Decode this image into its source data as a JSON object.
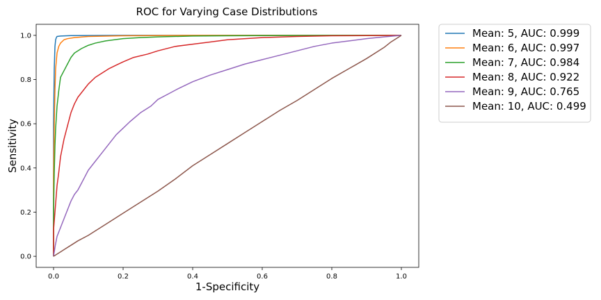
{
  "chart_data": {
    "type": "line",
    "title": "ROC for Varying Case Distributions",
    "xlabel": "1-Specificity",
    "ylabel": "Sensitivity",
    "xlim": [
      -0.05,
      1.05
    ],
    "ylim": [
      -0.05,
      1.05
    ],
    "xticks": [
      0.0,
      0.2,
      0.4,
      0.6,
      0.8,
      1.0
    ],
    "xtick_labels": [
      "0.0",
      "0.2",
      "0.4",
      "0.6",
      "0.8",
      "1.0"
    ],
    "yticks": [
      0.0,
      0.2,
      0.4,
      0.6,
      0.8,
      1.0
    ],
    "ytick_labels": [
      "0.0",
      "0.2",
      "0.4",
      "0.6",
      "0.8",
      "1.0"
    ],
    "grid": false,
    "legend_position": "outside upper right",
    "series": [
      {
        "name": "Mean: 5, AUC: 0.999",
        "color": "#1f77b4",
        "x": [
          0,
          0,
          0.002,
          0.004,
          0.006,
          0.008,
          0.01,
          0.02,
          0.05,
          0.2,
          0.5,
          1.0
        ],
        "y": [
          0,
          0.6,
          0.85,
          0.95,
          0.98,
          0.99,
          0.995,
          0.997,
          0.999,
          1.0,
          1.0,
          1.0
        ]
      },
      {
        "name": "Mean: 6, AUC: 0.997",
        "color": "#ff7f0e",
        "x": [
          0,
          0,
          0.002,
          0.004,
          0.006,
          0.01,
          0.015,
          0.02,
          0.03,
          0.04,
          0.06,
          0.1,
          0.2,
          0.4,
          1.0
        ],
        "y": [
          0,
          0.35,
          0.6,
          0.75,
          0.85,
          0.92,
          0.95,
          0.965,
          0.98,
          0.985,
          0.99,
          0.995,
          0.998,
          1.0,
          1.0
        ]
      },
      {
        "name": "Mean: 7, AUC: 0.984",
        "color": "#2ca02c",
        "x": [
          0,
          0,
          0.002,
          0.004,
          0.006,
          0.01,
          0.015,
          0.02,
          0.03,
          0.04,
          0.05,
          0.06,
          0.08,
          0.1,
          0.12,
          0.15,
          0.2,
          0.25,
          0.3,
          0.4,
          0.5,
          0.6,
          0.8,
          1.0
        ],
        "y": [
          0,
          0.2,
          0.38,
          0.5,
          0.58,
          0.68,
          0.75,
          0.81,
          0.84,
          0.87,
          0.9,
          0.92,
          0.94,
          0.955,
          0.965,
          0.975,
          0.985,
          0.99,
          0.993,
          0.997,
          0.998,
          0.999,
          1.0,
          1.0
        ]
      },
      {
        "name": "Mean: 8, AUC: 0.922",
        "color": "#d62728",
        "x": [
          0,
          0,
          0.005,
          0.01,
          0.015,
          0.02,
          0.03,
          0.04,
          0.05,
          0.06,
          0.07,
          0.08,
          0.09,
          0.1,
          0.12,
          0.14,
          0.16,
          0.18,
          0.2,
          0.23,
          0.27,
          0.3,
          0.35,
          0.4,
          0.45,
          0.5,
          0.6,
          0.7,
          0.8,
          0.9,
          1.0
        ],
        "y": [
          0,
          0.12,
          0.22,
          0.32,
          0.38,
          0.45,
          0.53,
          0.59,
          0.65,
          0.69,
          0.72,
          0.74,
          0.76,
          0.78,
          0.81,
          0.83,
          0.85,
          0.865,
          0.88,
          0.9,
          0.915,
          0.93,
          0.95,
          0.96,
          0.97,
          0.98,
          0.99,
          0.995,
          0.998,
          0.999,
          1.0
        ]
      },
      {
        "name": "Mean: 9, AUC: 0.765",
        "color": "#9467bd",
        "x": [
          0,
          0.005,
          0.01,
          0.02,
          0.03,
          0.04,
          0.05,
          0.06,
          0.07,
          0.08,
          0.09,
          0.1,
          0.12,
          0.14,
          0.16,
          0.18,
          0.2,
          0.22,
          0.25,
          0.28,
          0.3,
          0.33,
          0.36,
          0.4,
          0.45,
          0.5,
          0.55,
          0.6,
          0.65,
          0.7,
          0.75,
          0.8,
          0.85,
          0.9,
          0.95,
          1.0
        ],
        "y": [
          0,
          0.05,
          0.09,
          0.13,
          0.17,
          0.21,
          0.25,
          0.28,
          0.3,
          0.33,
          0.36,
          0.39,
          0.43,
          0.47,
          0.51,
          0.55,
          0.58,
          0.61,
          0.65,
          0.68,
          0.71,
          0.735,
          0.76,
          0.79,
          0.82,
          0.845,
          0.87,
          0.89,
          0.91,
          0.93,
          0.95,
          0.965,
          0.975,
          0.985,
          0.993,
          1.0
        ]
      },
      {
        "name": "Mean: 10, AUC: 0.499",
        "color": "#8c564b",
        "x": [
          0,
          0.01,
          0.02,
          0.03,
          0.05,
          0.07,
          0.1,
          0.12,
          0.15,
          0.2,
          0.25,
          0.3,
          0.35,
          0.4,
          0.45,
          0.5,
          0.55,
          0.6,
          0.65,
          0.7,
          0.75,
          0.8,
          0.85,
          0.9,
          0.95,
          0.97,
          0.99,
          1.0
        ],
        "y": [
          0,
          0.01,
          0.02,
          0.03,
          0.05,
          0.07,
          0.095,
          0.115,
          0.145,
          0.195,
          0.245,
          0.295,
          0.35,
          0.41,
          0.46,
          0.51,
          0.56,
          0.61,
          0.66,
          0.705,
          0.755,
          0.805,
          0.85,
          0.895,
          0.945,
          0.97,
          0.99,
          1.0
        ]
      }
    ]
  }
}
